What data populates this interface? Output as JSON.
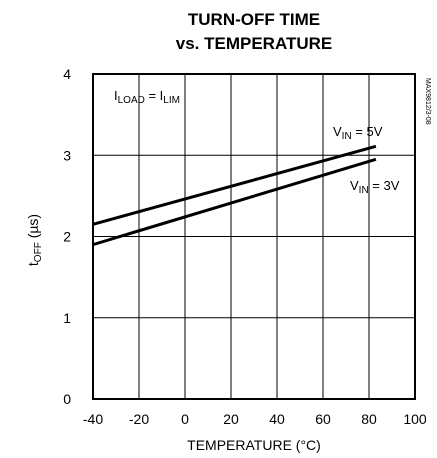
{
  "chart_data": {
    "type": "line",
    "title_line1": "TURN-OFF TIME",
    "title_line2": "vs. TEMPERATURE",
    "xlabel": "TEMPERATURE (°C)",
    "ylabel": {
      "main": "t",
      "sub": "OFF",
      "unit": " (µs)"
    },
    "xlim": [
      -40,
      100
    ],
    "ylim": [
      0,
      4
    ],
    "x_ticks": [
      "-40",
      "-20",
      "0",
      "20",
      "40",
      "60",
      "80",
      "100"
    ],
    "y_ticks": [
      "0",
      "1",
      "2",
      "3",
      "4"
    ],
    "grid": true,
    "series": [
      {
        "name": "VIN = 5V",
        "x": [
          -40,
          83
        ],
        "y": [
          2.15,
          3.11
        ]
      },
      {
        "name": "VIN = 3V",
        "x": [
          -40,
          83
        ],
        "y": [
          1.9,
          2.95
        ]
      }
    ],
    "annotation": {
      "i1": "I",
      "i1_sub": "LOAD",
      "eq": " = I",
      "i2_sub": "LIM"
    },
    "label_5v": {
      "v": "V",
      "sub": "IN",
      "rest": " = 5V"
    },
    "label_3v": {
      "v": "V",
      "sub": "IN",
      "rest": " = 3V"
    },
    "part_number": "MAX9812/3-08"
  }
}
